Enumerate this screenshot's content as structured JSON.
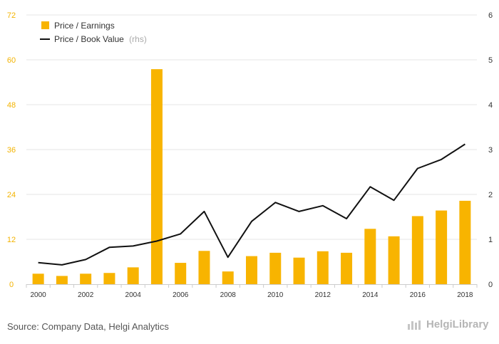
{
  "chart_data": {
    "type": "bar+line",
    "x": [
      2000,
      2001,
      2002,
      2003,
      2004,
      2005,
      2006,
      2007,
      2008,
      2009,
      2010,
      2011,
      2012,
      2013,
      2014,
      2015,
      2016,
      2017,
      2018
    ],
    "x_tick_labels": [
      "2000",
      "2002",
      "2004",
      "2006",
      "2008",
      "2010",
      "2012",
      "2014",
      "2016",
      "2018"
    ],
    "series": [
      {
        "name": "Price / Earnings",
        "type": "bar",
        "axis": "left",
        "color": "#f8b400",
        "values": [
          2.8,
          2.2,
          2.8,
          3.0,
          4.5,
          57.5,
          5.7,
          8.9,
          3.4,
          7.5,
          8.4,
          7.1,
          8.8,
          8.4,
          14.8,
          12.8,
          18.2,
          19.7,
          22.3
        ]
      },
      {
        "name": "Price / Book Value",
        "name_suffix": "(rhs)",
        "type": "line",
        "axis": "right",
        "color": "#111111",
        "values": [
          0.48,
          0.43,
          0.55,
          0.82,
          0.85,
          0.96,
          1.12,
          1.62,
          0.6,
          1.4,
          1.82,
          1.62,
          1.75,
          1.46,
          2.17,
          1.87,
          2.58,
          2.78,
          3.12
        ]
      }
    ],
    "left_axis": {
      "ylim": [
        0,
        72
      ],
      "ticks": [
        "0",
        "12",
        "24",
        "36",
        "48",
        "60",
        "72"
      ],
      "color": "#f3b300"
    },
    "right_axis": {
      "ylim": [
        0,
        6
      ],
      "ticks": [
        "0",
        "1",
        "2",
        "3",
        "4",
        "5",
        "6"
      ]
    },
    "grid": true,
    "legend_position": "top-left"
  },
  "footer": {
    "source": "Source: Company Data, Helgi Analytics",
    "brand": "HelgiLibrary"
  }
}
